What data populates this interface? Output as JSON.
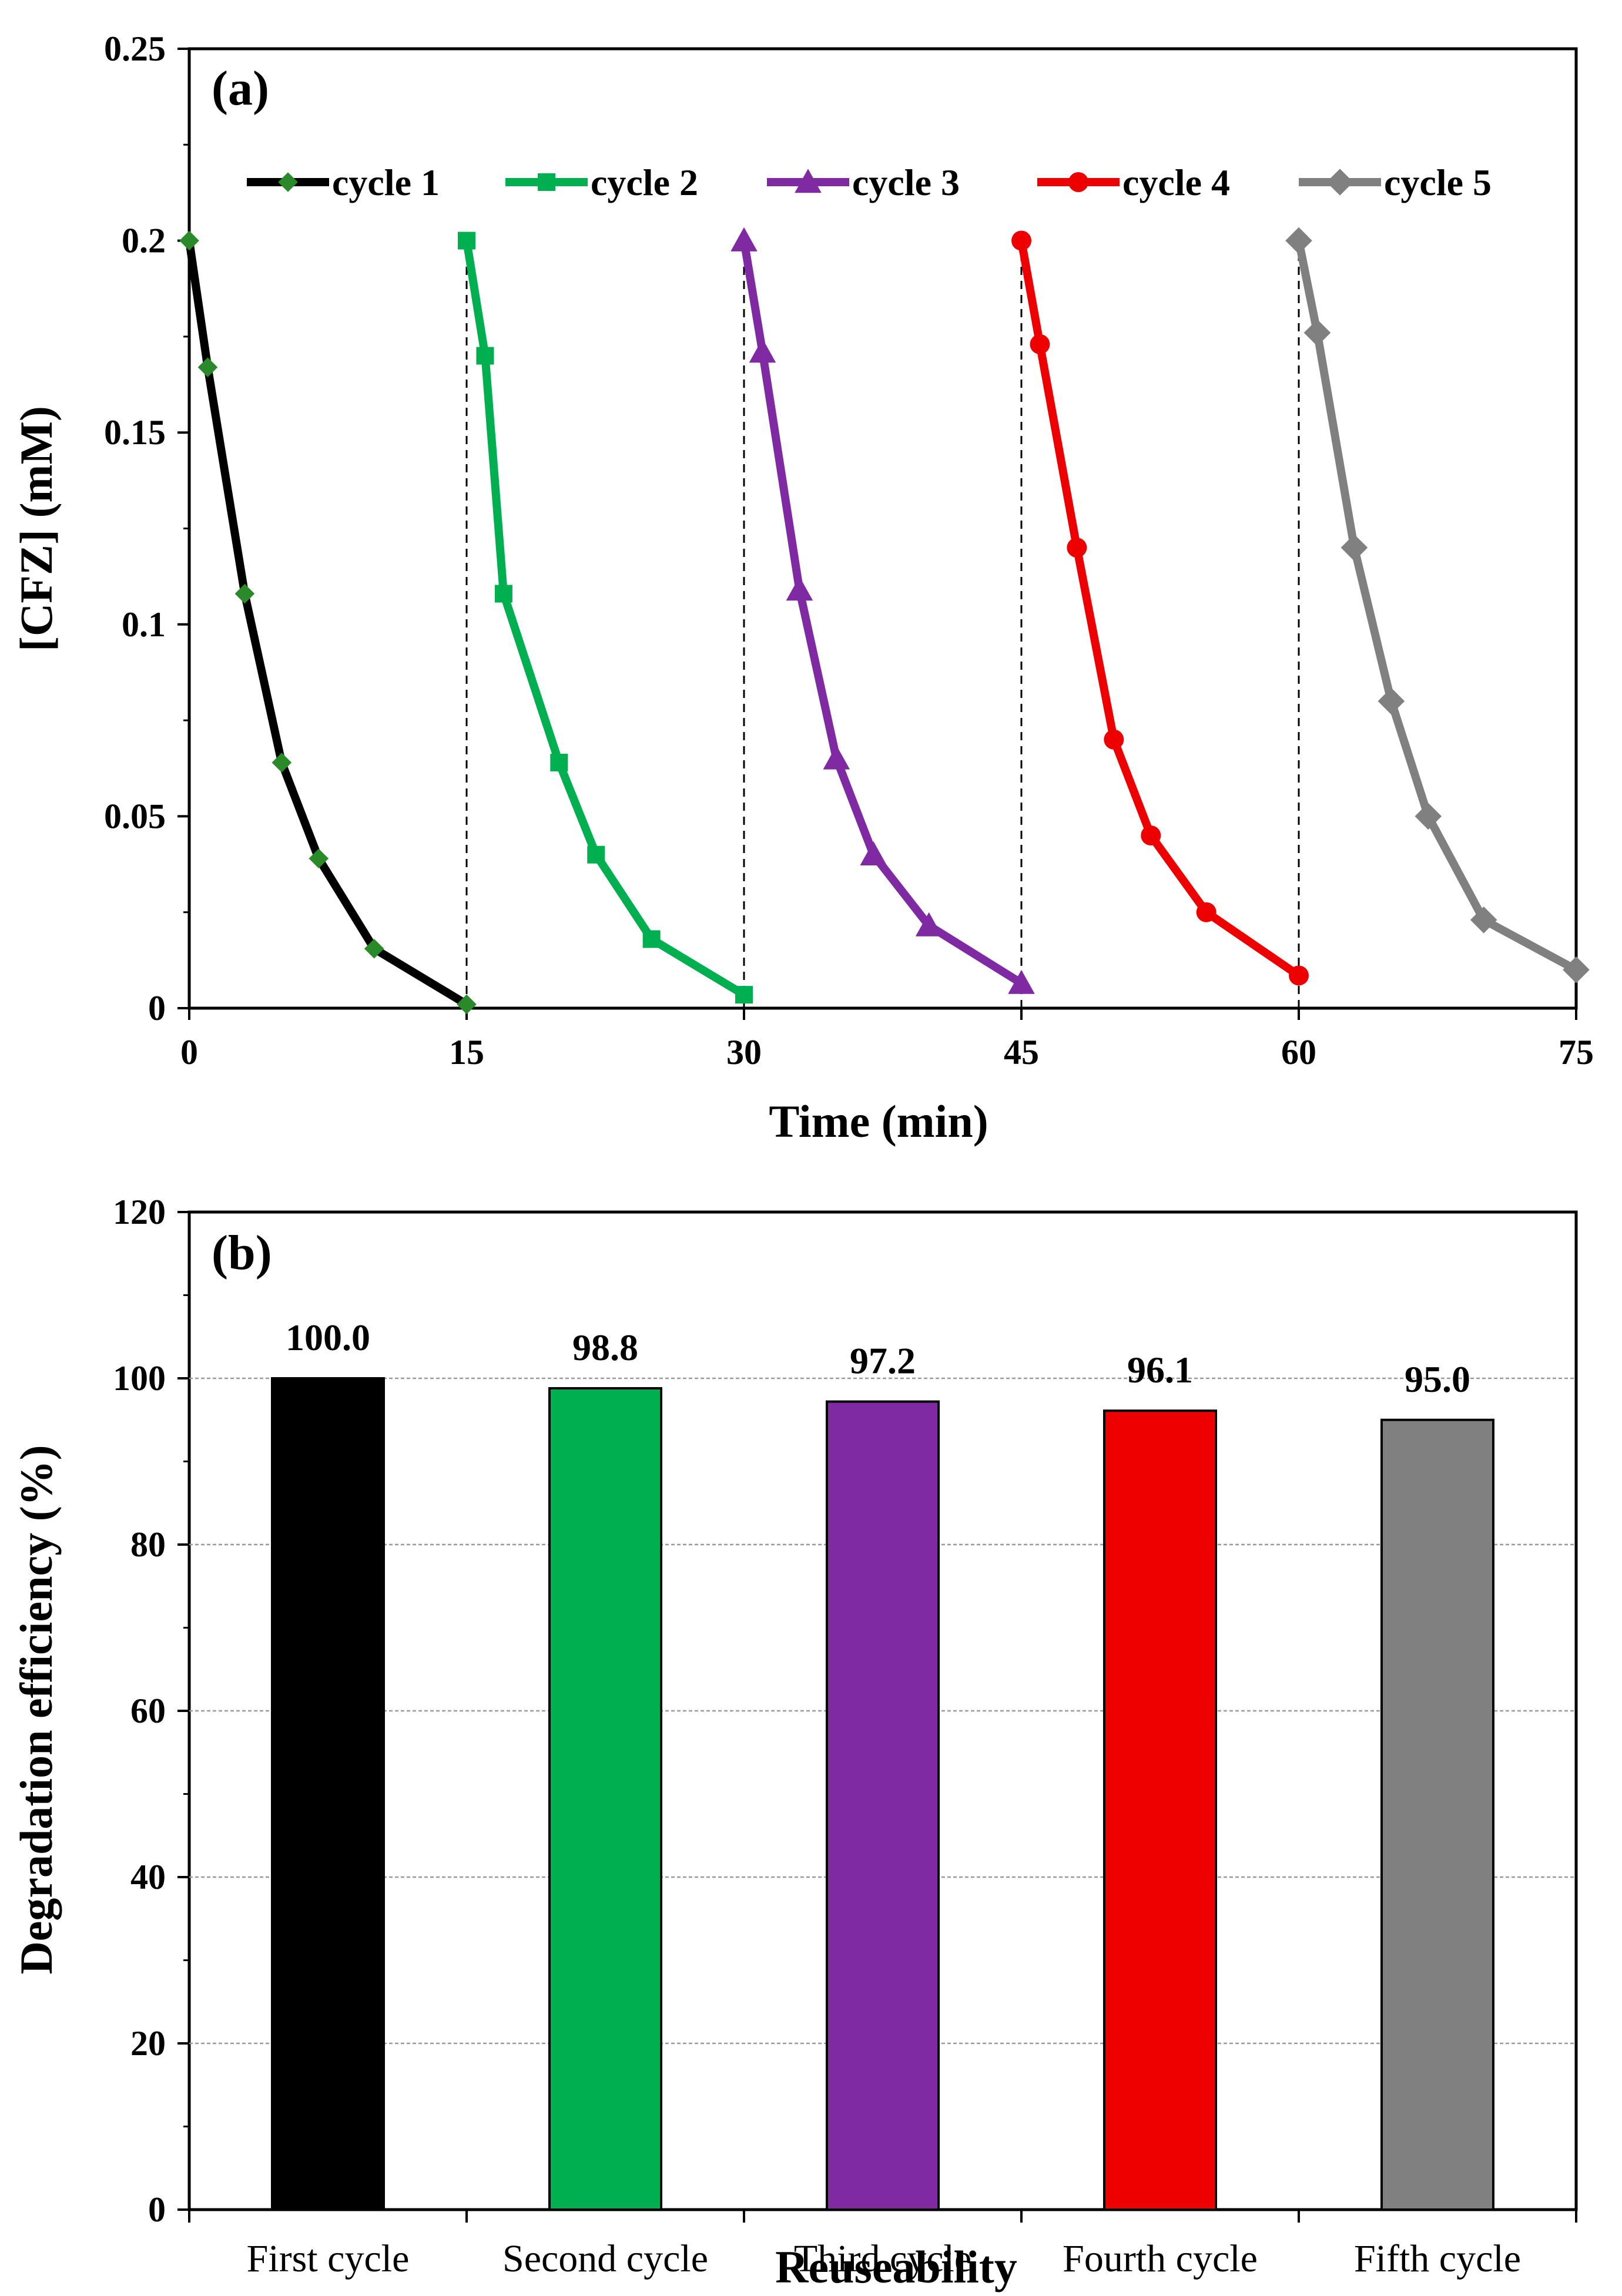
{
  "chart_data": [
    {
      "type": "line",
      "panel_label": "(a)",
      "title": "",
      "xlabel": "Time (min)",
      "ylabel": "[CFZ] (mM)",
      "xlim": [
        0,
        75
      ],
      "ylim": [
        0,
        0.25
      ],
      "xticks": [
        "0",
        "15",
        "30",
        "45",
        "60",
        "75"
      ],
      "yticks": [
        "0",
        "0.05",
        "0.1",
        "0.15",
        "0.2",
        "0.25"
      ],
      "grid": false,
      "legend_position": "top",
      "cycle_boundaries": [
        15,
        30,
        45,
        60
      ],
      "series": [
        {
          "name": "cycle 1",
          "color": "#000000",
          "marker": "diamond",
          "x": [
            0,
            1,
            3,
            5,
            7,
            10,
            15
          ],
          "y": [
            0.2,
            0.167,
            0.108,
            0.064,
            0.039,
            0.0155,
            0.001
          ]
        },
        {
          "name": "cycle 2",
          "color": "#00b050",
          "marker": "square",
          "x": [
            15,
            16,
            17,
            20,
            22,
            25,
            30
          ],
          "y": [
            0.2,
            0.17,
            0.108,
            0.064,
            0.04,
            0.018,
            0.0035
          ]
        },
        {
          "name": "cycle 3",
          "color": "#7f2aa3",
          "marker": "triangle",
          "x": [
            30,
            31,
            33,
            35,
            37,
            40,
            45
          ],
          "y": [
            0.2,
            0.171,
            0.109,
            0.065,
            0.04,
            0.0215,
            0.0065
          ]
        },
        {
          "name": "cycle 4",
          "color": "#ee0000",
          "marker": "circle",
          "x": [
            45,
            46,
            48,
            50,
            52,
            55,
            60
          ],
          "y": [
            0.2,
            0.173,
            0.12,
            0.07,
            0.045,
            0.025,
            0.0085
          ]
        },
        {
          "name": "cycle 5",
          "color": "#808080",
          "marker": "diamond",
          "x": [
            60,
            61,
            63,
            65,
            67,
            70,
            75
          ],
          "y": [
            0.2,
            0.176,
            0.12,
            0.08,
            0.05,
            0.023,
            0.01
          ]
        }
      ]
    },
    {
      "type": "bar",
      "panel_label": "(b)",
      "title": "",
      "xlabel": "Reuseability",
      "ylabel": "Degradation efficiency (%)",
      "ylim": [
        0,
        120
      ],
      "yticks": [
        "0",
        "20",
        "40",
        "60",
        "80",
        "100",
        "120"
      ],
      "grid": true,
      "categories": [
        "First cycle",
        "Second cycle",
        "Third cycle",
        "Fourth cycle",
        "Fifth cycle"
      ],
      "values": [
        100.0,
        98.8,
        97.2,
        96.1,
        95.0
      ],
      "value_labels": [
        "100.0",
        "98.8",
        "97.2",
        "96.1",
        "95.0"
      ],
      "colors": [
        "#000000",
        "#00b050",
        "#7f2aa3",
        "#ee0000",
        "#808080"
      ]
    }
  ]
}
